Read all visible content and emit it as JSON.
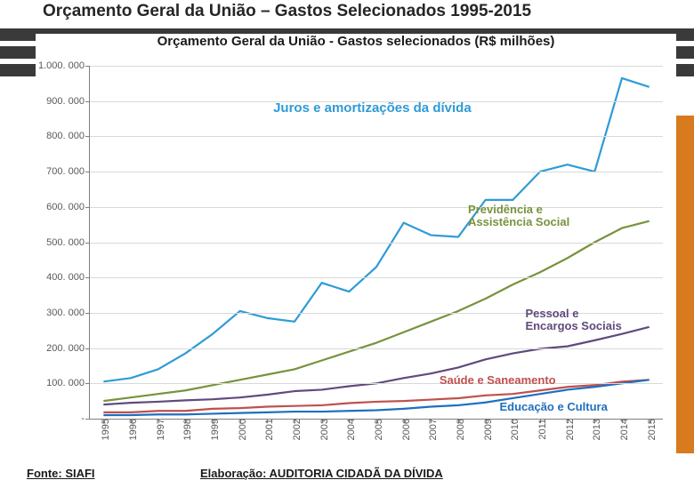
{
  "slide": {
    "title": "Orçamento Geral da União – Gastos Selecionados 1995-2015",
    "title_fontsize": 19,
    "title_color": "#262626",
    "background_stripes_y": [
      32,
      52,
      72
    ],
    "stripe_color": "#3a3a3a",
    "orange_bar_color": "#d87a1e"
  },
  "chart": {
    "type": "line",
    "title": "Orçamento Geral da União - Gastos selecionados (R$ milhões)",
    "title_fontsize": 15,
    "title_color": "#1a1a1a",
    "background_color": "#ffffff",
    "grid_color": "#d9d9d9",
    "axis_color": "#7f7f7f",
    "tick_label_color": "#595959",
    "tick_fontsize": 11,
    "ylim": [
      0,
      1000000
    ],
    "ytick_step": 100000,
    "ytick_format": "thousand_dot",
    "ytick_labels": [
      "-",
      "100. 000",
      "200. 000",
      "300. 000",
      "400. 000",
      "500. 000",
      "600. 000",
      "700. 000",
      "800. 000",
      "900. 000",
      "1.000. 000"
    ],
    "x_categories": [
      "1995",
      "1996",
      "1997",
      "1998",
      "1999",
      "2000",
      "2001",
      "2002",
      "2003",
      "2004",
      "2005",
      "2006",
      "2007",
      "2008",
      "2009",
      "2010",
      "2011",
      "2012",
      "2013",
      "2014",
      "2015"
    ],
    "x_rotation": -90,
    "line_width": 2.2,
    "series": [
      {
        "name": "juros",
        "label": "Juros e amortizações da dívida",
        "color": "#2e9bd6",
        "label_pos": {
          "x": 0.32,
          "y": 0.9
        },
        "label_fontsize": 15,
        "values": [
          105000,
          115000,
          140000,
          185000,
          240000,
          305000,
          285000,
          275000,
          385000,
          360000,
          430000,
          555000,
          520000,
          515000,
          620000,
          620000,
          700000,
          720000,
          700000,
          965000,
          940000
        ]
      },
      {
        "name": "previdencia",
        "label": "Previdência  e\nAssistência Social",
        "color": "#77933c",
        "label_pos": {
          "x": 0.66,
          "y": 0.61
        },
        "label_fontsize": 13,
        "values": [
          50000,
          60000,
          70000,
          80000,
          95000,
          110000,
          125000,
          140000,
          165000,
          190000,
          215000,
          245000,
          275000,
          305000,
          340000,
          380000,
          415000,
          455000,
          500000,
          540000,
          560000
        ]
      },
      {
        "name": "pessoal",
        "label": "Pessoal e\nEncargos Sociais",
        "color": "#604a7b",
        "label_pos": {
          "x": 0.76,
          "y": 0.315
        },
        "label_fontsize": 13,
        "values": [
          40000,
          45000,
          48000,
          52000,
          55000,
          60000,
          68000,
          78000,
          82000,
          92000,
          100000,
          115000,
          128000,
          145000,
          168000,
          185000,
          198000,
          205000,
          222000,
          240000,
          260000
        ]
      },
      {
        "name": "saude",
        "label": "Saúde e Saneamento",
        "color": "#c0504d",
        "label_pos": {
          "x": 0.61,
          "y": 0.125
        },
        "label_fontsize": 13,
        "values": [
          18000,
          18000,
          22000,
          22000,
          28000,
          30000,
          34000,
          36000,
          38000,
          44000,
          48000,
          50000,
          54000,
          58000,
          66000,
          70000,
          80000,
          90000,
          95000,
          105000,
          110000
        ]
      },
      {
        "name": "educacao",
        "label": "Educação  e Cultura",
        "color": "#1f6fbf",
        "label_pos": {
          "x": 0.715,
          "y": 0.05
        },
        "label_fontsize": 13,
        "values": [
          10000,
          10000,
          12000,
          12000,
          14000,
          16000,
          18000,
          20000,
          20000,
          22000,
          24000,
          28000,
          34000,
          38000,
          46000,
          58000,
          70000,
          82000,
          90000,
          100000,
          110000
        ]
      }
    ]
  },
  "footer": {
    "source_label": "Fonte: SIAFI",
    "elab_label": "Elaboração: AUDITORIA CIDADÃ DA DÍVIDA",
    "fontsize": 13,
    "color": "#1a1a1a"
  }
}
